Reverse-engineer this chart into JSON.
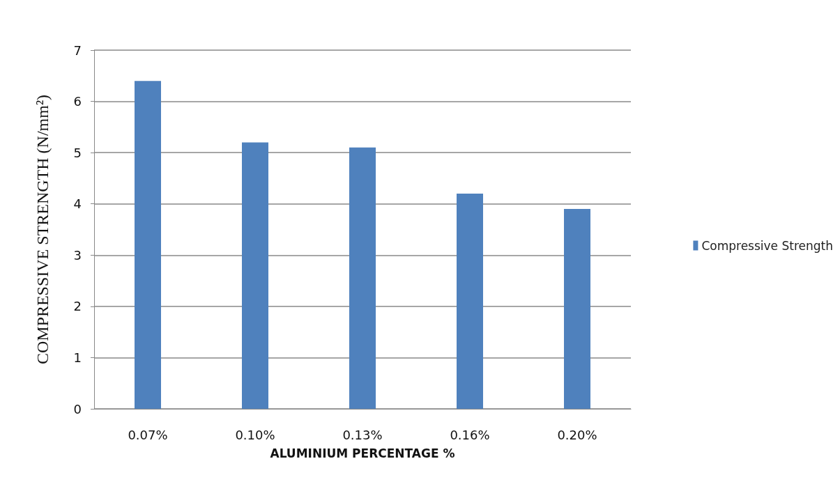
{
  "chart_data": {
    "type": "bar",
    "xlabel": "ALUMINIUM PERCENTAGE %",
    "ylabel": "COMPRESSIVE STRENGTH (N/mm²)",
    "categories": [
      "0.07%",
      "0.10%",
      "0.13%",
      "0.16%",
      "0.20%"
    ],
    "series": [
      {
        "name": "Compressive Strength",
        "color": "#4f81bd",
        "values": [
          6.4,
          5.2,
          5.1,
          4.2,
          3.9
        ]
      }
    ],
    "ylim": [
      0,
      7
    ],
    "yticks": [
      0,
      1,
      2,
      3,
      4,
      5,
      6,
      7
    ],
    "grid": "y",
    "legend": "right"
  }
}
